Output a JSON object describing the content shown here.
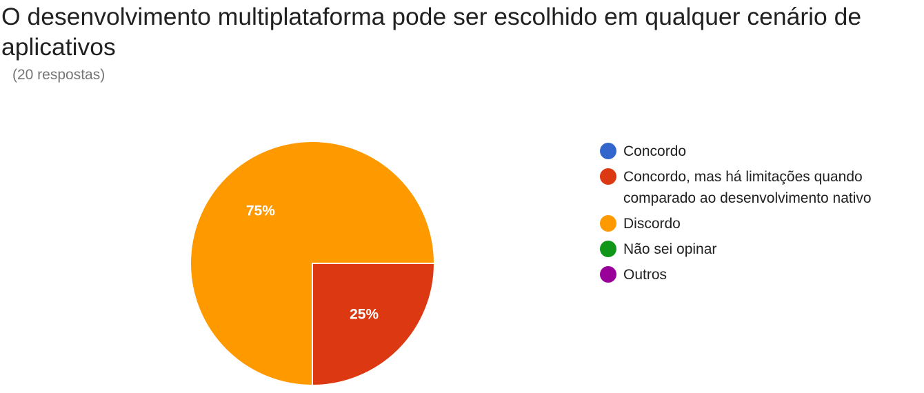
{
  "title": "O desenvolvimento multiplataforma pode ser escolhido em qualquer cenário de aplicativos",
  "subtitle": "(20 respostas)",
  "chart_data": {
    "type": "pie",
    "categories": [
      "Concordo",
      "Concordo, mas há limitações quando comparado ao desenvolvimento nativo",
      "Discordo",
      "Não sei opinar",
      "Outros"
    ],
    "values": [
      0,
      25,
      75,
      0,
      0
    ],
    "labels": [
      "",
      "25%",
      "75%",
      "",
      ""
    ],
    "colors": [
      "#3366cc",
      "#dc3912",
      "#ff9900",
      "#109618",
      "#990099"
    ],
    "title": "O desenvolvimento multiplataforma pode ser escolhido em qualquer cenário de aplicativos",
    "legend": "right"
  }
}
